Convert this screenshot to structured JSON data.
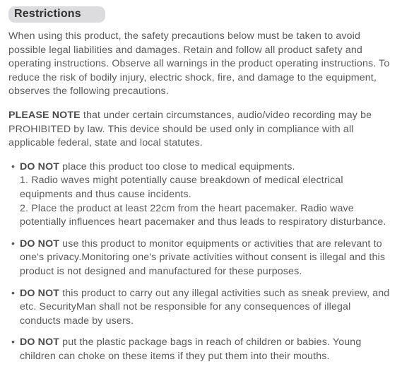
{
  "heading": "Restrictions",
  "intro": "When using this product, the safety precautions below must be taken to avoid possible legal liabilities and damages. Retain and follow all product safety and operating instructions. Observe all warnings in the product operating instructions. To reduce the risk of bodily injury, electric shock, fire, and damage to the equipment, observes the following precautions.",
  "note_strong": "PLEASE NOTE",
  "note_rest": " that under certain circumstances, audio/video recording may be PROHIBITED by law. This device should be used only in compliance with all applicable federal, state and local statutes.",
  "bullets": [
    {
      "lead": "DO NOT",
      "text": " place this product too close to medical equipments.\n1. Radio waves might potentially cause breakdown of medical electrical equipments and thus cause incidents.\n2. Place the product at least 22cm from the heart pacemaker. Radio wave potentially influences heart pacemaker and thus leads to respiratory disturbance."
    },
    {
      "lead": "DO NOT",
      "text": " use this product to monitor equipments or activities that are relevant to one's privacy.Monitoring one's private activities without consent is illegal and this product is not designed and manufactured for these purposes."
    },
    {
      "lead": "DO NOT",
      "text": " this product to carry out any illegal activities such as sneak preview, and etc. SecurityMan shall not be responsible for any consequences of illegal conducts made by users."
    },
    {
      "lead": "DO NOT",
      "text": " put the plastic package bags in reach of children or babies. Young children can choke on these items if they put them into their mouths."
    }
  ],
  "colors": {
    "heading_bg": "#dcdcde",
    "heading_fg": "#2f2f2f",
    "body_fg": "#5a5a5a"
  }
}
